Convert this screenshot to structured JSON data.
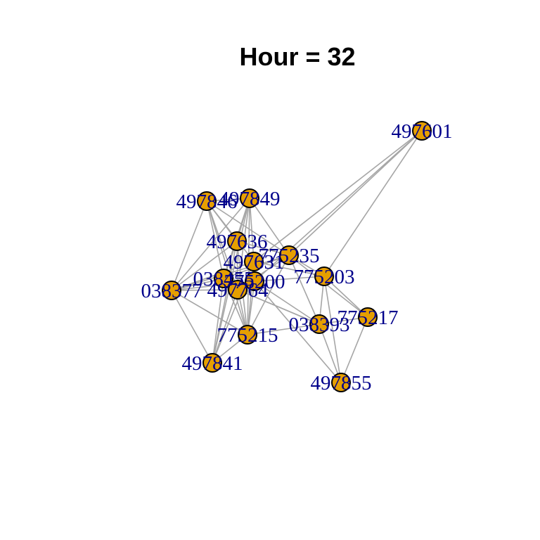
{
  "title": "Hour = 32",
  "colors": {
    "node_fill": "#E69F00",
    "node_stroke": "#000000",
    "edge": "#A6A6A6",
    "label": "#00008B",
    "background": "#FFFFFF"
  },
  "graph": {
    "nodes": [
      {
        "id": "497601",
        "label": "497601"
      },
      {
        "id": "497846",
        "label": "497846"
      },
      {
        "id": "497849",
        "label": "497849"
      },
      {
        "id": "497636",
        "label": "497636"
      },
      {
        "id": "775235",
        "label": "775235"
      },
      {
        "id": "497631",
        "label": "497631"
      },
      {
        "id": "038455",
        "label": "038455"
      },
      {
        "id": "775200",
        "label": "775200"
      },
      {
        "id": "497764",
        "label": "497764"
      },
      {
        "id": "038377",
        "label": "038377"
      },
      {
        "id": "775203",
        "label": "775203"
      },
      {
        "id": "775217",
        "label": "775217"
      },
      {
        "id": "038393",
        "label": "038393"
      },
      {
        "id": "775215",
        "label": "775215"
      },
      {
        "id": "497841",
        "label": "497841"
      },
      {
        "id": "497855",
        "label": "497855"
      }
    ],
    "edges": [
      [
        "497601",
        "775235"
      ],
      [
        "497601",
        "775203"
      ],
      [
        "497601",
        "497631"
      ],
      [
        "497601",
        "775200"
      ],
      [
        "497846",
        "497849"
      ],
      [
        "497846",
        "497636"
      ],
      [
        "497846",
        "038377"
      ],
      [
        "497846",
        "775235"
      ],
      [
        "497846",
        "497631"
      ],
      [
        "497846",
        "038455"
      ],
      [
        "497846",
        "497764"
      ],
      [
        "497846",
        "775215"
      ],
      [
        "497849",
        "497636"
      ],
      [
        "497849",
        "038377"
      ],
      [
        "497849",
        "775235"
      ],
      [
        "497849",
        "497631"
      ],
      [
        "497849",
        "038455"
      ],
      [
        "497849",
        "497764"
      ],
      [
        "497849",
        "775215"
      ],
      [
        "497849",
        "497841"
      ],
      [
        "497636",
        "038377"
      ],
      [
        "497636",
        "775235"
      ],
      [
        "497636",
        "038455"
      ],
      [
        "497636",
        "497764"
      ],
      [
        "497636",
        "775215"
      ],
      [
        "497636",
        "497841"
      ],
      [
        "775235",
        "038377"
      ],
      [
        "775235",
        "775203"
      ],
      [
        "775235",
        "775217"
      ],
      [
        "775235",
        "038393"
      ],
      [
        "775235",
        "775215"
      ],
      [
        "775235",
        "038455"
      ],
      [
        "775235",
        "497764"
      ],
      [
        "497631",
        "038377"
      ],
      [
        "497631",
        "775215"
      ],
      [
        "497631",
        "497841"
      ],
      [
        "497631",
        "775203"
      ],
      [
        "038455",
        "038377"
      ],
      [
        "038455",
        "775215"
      ],
      [
        "038455",
        "497841"
      ],
      [
        "775200",
        "038377"
      ],
      [
        "775200",
        "775203"
      ],
      [
        "775200",
        "038393"
      ],
      [
        "775200",
        "497855"
      ],
      [
        "775200",
        "775215"
      ],
      [
        "497764",
        "038377"
      ],
      [
        "497764",
        "775215"
      ],
      [
        "497764",
        "497841"
      ],
      [
        "497764",
        "038393"
      ],
      [
        "038377",
        "775215"
      ],
      [
        "038377",
        "497841"
      ],
      [
        "775203",
        "775217"
      ],
      [
        "775203",
        "038393"
      ],
      [
        "775203",
        "497855"
      ],
      [
        "775217",
        "038393"
      ],
      [
        "775217",
        "497855"
      ],
      [
        "038393",
        "497855"
      ],
      [
        "038393",
        "497764"
      ],
      [
        "775215",
        "497841"
      ],
      [
        "775215",
        "038393"
      ]
    ]
  }
}
